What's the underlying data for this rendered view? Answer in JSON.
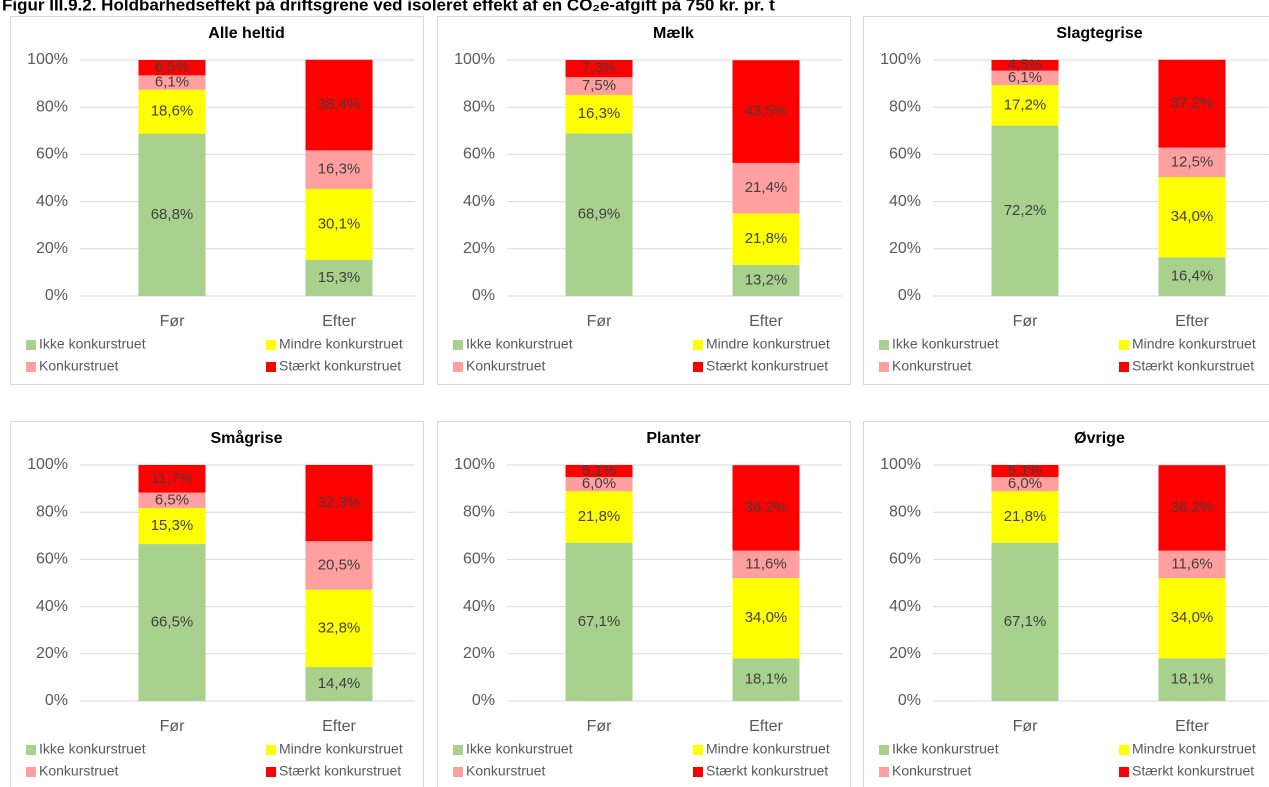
{
  "title": "Figur III.9.2. Holdbarhedseffekt på driftsgrene ved isoleret effekt af en CO₂e-afgift på 750 kr. pr. t",
  "chart_data": [
    {
      "type": "bar",
      "stacked": true,
      "title": "Alle heltid",
      "categories": [
        "Før",
        "Efter"
      ],
      "ylim": [
        0,
        100
      ],
      "yticks": [
        {
          "value": 0,
          "label": "0%"
        },
        {
          "value": 20,
          "label": "20%"
        },
        {
          "value": 40,
          "label": "40%"
        },
        {
          "value": 60,
          "label": "60%"
        },
        {
          "value": 80,
          "label": "80%"
        },
        {
          "value": 100,
          "label": "100%"
        }
      ],
      "grid": true,
      "series": [
        {
          "name": "Ikke konkurstruet",
          "color": "#a9d18e",
          "values": [
            68.8,
            15.3
          ],
          "value_labels": [
            "68,8%",
            "15,3%"
          ]
        },
        {
          "name": "Mindre konkurstruet",
          "color": "#ffff00",
          "values": [
            18.6,
            30.1
          ],
          "value_labels": [
            "18,6%",
            "30,1%"
          ]
        },
        {
          "name": "Konkurstruet",
          "color": "#ff9f9f",
          "values": [
            6.1,
            16.3
          ],
          "value_labels": [
            "6,1%",
            "16,3%"
          ]
        },
        {
          "name": "Stærkt konkurstruet",
          "color": "#ff0000",
          "values": [
            6.5,
            38.4
          ],
          "value_labels": [
            "6,5%",
            "38,4%"
          ]
        }
      ]
    },
    {
      "type": "bar",
      "stacked": true,
      "title": "Mælk",
      "categories": [
        "Før",
        "Efter"
      ],
      "ylim": [
        0,
        100
      ],
      "yticks": [
        {
          "value": 0,
          "label": "0%"
        },
        {
          "value": 20,
          "label": "20%"
        },
        {
          "value": 40,
          "label": "40%"
        },
        {
          "value": 60,
          "label": "60%"
        },
        {
          "value": 80,
          "label": "80%"
        },
        {
          "value": 100,
          "label": "100%"
        }
      ],
      "grid": true,
      "series": [
        {
          "name": "Ikke konkurstruet",
          "color": "#a9d18e",
          "values": [
            68.9,
            13.2
          ],
          "value_labels": [
            "68,9%",
            "13,2%"
          ]
        },
        {
          "name": "Mindre konkurstruet",
          "color": "#ffff00",
          "values": [
            16.3,
            21.8
          ],
          "value_labels": [
            "16,3%",
            "21,8%"
          ]
        },
        {
          "name": "Konkurstruet",
          "color": "#ff9f9f",
          "values": [
            7.5,
            21.4
          ],
          "value_labels": [
            "7,5%",
            "21,4%"
          ]
        },
        {
          "name": "Stærkt konkurstruet",
          "color": "#ff0000",
          "values": [
            7.3,
            43.5
          ],
          "value_labels": [
            "7,3%",
            "43,5%"
          ]
        }
      ]
    },
    {
      "type": "bar",
      "stacked": true,
      "title": "Slagtegrise",
      "categories": [
        "Før",
        "Efter"
      ],
      "ylim": [
        0,
        100
      ],
      "yticks": [
        {
          "value": 0,
          "label": "0%"
        },
        {
          "value": 20,
          "label": "20%"
        },
        {
          "value": 40,
          "label": "40%"
        },
        {
          "value": 60,
          "label": "60%"
        },
        {
          "value": 80,
          "label": "80%"
        },
        {
          "value": 100,
          "label": "100%"
        }
      ],
      "grid": true,
      "series": [
        {
          "name": "Ikke konkurstruet",
          "color": "#a9d18e",
          "values": [
            72.2,
            16.4
          ],
          "value_labels": [
            "72,2%",
            "16,4%"
          ]
        },
        {
          "name": "Mindre konkurstruet",
          "color": "#ffff00",
          "values": [
            17.2,
            34.0
          ],
          "value_labels": [
            "17,2%",
            "34,0%"
          ]
        },
        {
          "name": "Konkurstruet",
          "color": "#ff9f9f",
          "values": [
            6.1,
            12.5
          ],
          "value_labels": [
            "6,1%",
            "12,5%"
          ]
        },
        {
          "name": "Stærkt konkurstruet",
          "color": "#ff0000",
          "values": [
            4.5,
            37.2
          ],
          "value_labels": [
            "4,5%",
            "37,2%"
          ]
        }
      ]
    },
    {
      "type": "bar",
      "stacked": true,
      "title": "Smågrise",
      "categories": [
        "Før",
        "Efter"
      ],
      "ylim": [
        0,
        100
      ],
      "yticks": [
        {
          "value": 0,
          "label": "0%"
        },
        {
          "value": 20,
          "label": "20%"
        },
        {
          "value": 40,
          "label": "40%"
        },
        {
          "value": 60,
          "label": "60%"
        },
        {
          "value": 80,
          "label": "80%"
        },
        {
          "value": 100,
          "label": "100%"
        }
      ],
      "grid": true,
      "series": [
        {
          "name": "Ikke konkurstruet",
          "color": "#a9d18e",
          "values": [
            66.5,
            14.4
          ],
          "value_labels": [
            "66,5%",
            "14,4%"
          ]
        },
        {
          "name": "Mindre konkurstruet",
          "color": "#ffff00",
          "values": [
            15.3,
            32.8
          ],
          "value_labels": [
            "15,3%",
            "32,8%"
          ]
        },
        {
          "name": "Konkurstruet",
          "color": "#ff9f9f",
          "values": [
            6.5,
            20.5
          ],
          "value_labels": [
            "6,5%",
            "20,5%"
          ]
        },
        {
          "name": "Stærkt konkurstruet",
          "color": "#ff0000",
          "values": [
            11.7,
            32.3
          ],
          "value_labels": [
            "11,7%",
            "32,3%"
          ]
        }
      ]
    },
    {
      "type": "bar",
      "stacked": true,
      "title": "Planter",
      "categories": [
        "Før",
        "Efter"
      ],
      "ylim": [
        0,
        100
      ],
      "yticks": [
        {
          "value": 0,
          "label": "0%"
        },
        {
          "value": 20,
          "label": "20%"
        },
        {
          "value": 40,
          "label": "40%"
        },
        {
          "value": 60,
          "label": "60%"
        },
        {
          "value": 80,
          "label": "80%"
        },
        {
          "value": 100,
          "label": "100%"
        }
      ],
      "grid": true,
      "series": [
        {
          "name": "Ikke konkurstruet",
          "color": "#a9d18e",
          "values": [
            67.1,
            18.1
          ],
          "value_labels": [
            "67,1%",
            "18,1%"
          ]
        },
        {
          "name": "Mindre konkurstruet",
          "color": "#ffff00",
          "values": [
            21.8,
            34.0
          ],
          "value_labels": [
            "21,8%",
            "34,0%"
          ]
        },
        {
          "name": "Konkurstruet",
          "color": "#ff9f9f",
          "values": [
            6.0,
            11.6
          ],
          "value_labels": [
            "6,0%",
            "11,6%"
          ]
        },
        {
          "name": "Stærkt konkurstruet",
          "color": "#ff0000",
          "values": [
            5.1,
            36.2
          ],
          "value_labels": [
            "5,1%",
            "36,2%"
          ]
        }
      ]
    },
    {
      "type": "bar",
      "stacked": true,
      "title": "Øvrige",
      "categories": [
        "Før",
        "Efter"
      ],
      "ylim": [
        0,
        100
      ],
      "yticks": [
        {
          "value": 0,
          "label": "0%"
        },
        {
          "value": 20,
          "label": "20%"
        },
        {
          "value": 40,
          "label": "40%"
        },
        {
          "value": 60,
          "label": "60%"
        },
        {
          "value": 80,
          "label": "80%"
        },
        {
          "value": 100,
          "label": "100%"
        }
      ],
      "grid": true,
      "series": [
        {
          "name": "Ikke konkurstruet",
          "color": "#a9d18e",
          "values": [
            67.1,
            18.1
          ],
          "value_labels": [
            "67,1%",
            "18,1%"
          ]
        },
        {
          "name": "Mindre konkurstruet",
          "color": "#ffff00",
          "values": [
            21.8,
            34.0
          ],
          "value_labels": [
            "21,8%",
            "34,0%"
          ]
        },
        {
          "name": "Konkurstruet",
          "color": "#ff9f9f",
          "values": [
            6.0,
            11.6
          ],
          "value_labels": [
            "6,0%",
            "11,6%"
          ]
        },
        {
          "name": "Stærkt konkurstruet",
          "color": "#ff0000",
          "values": [
            5.1,
            36.2
          ],
          "value_labels": [
            "5,1%",
            "36,2%"
          ]
        }
      ]
    }
  ]
}
